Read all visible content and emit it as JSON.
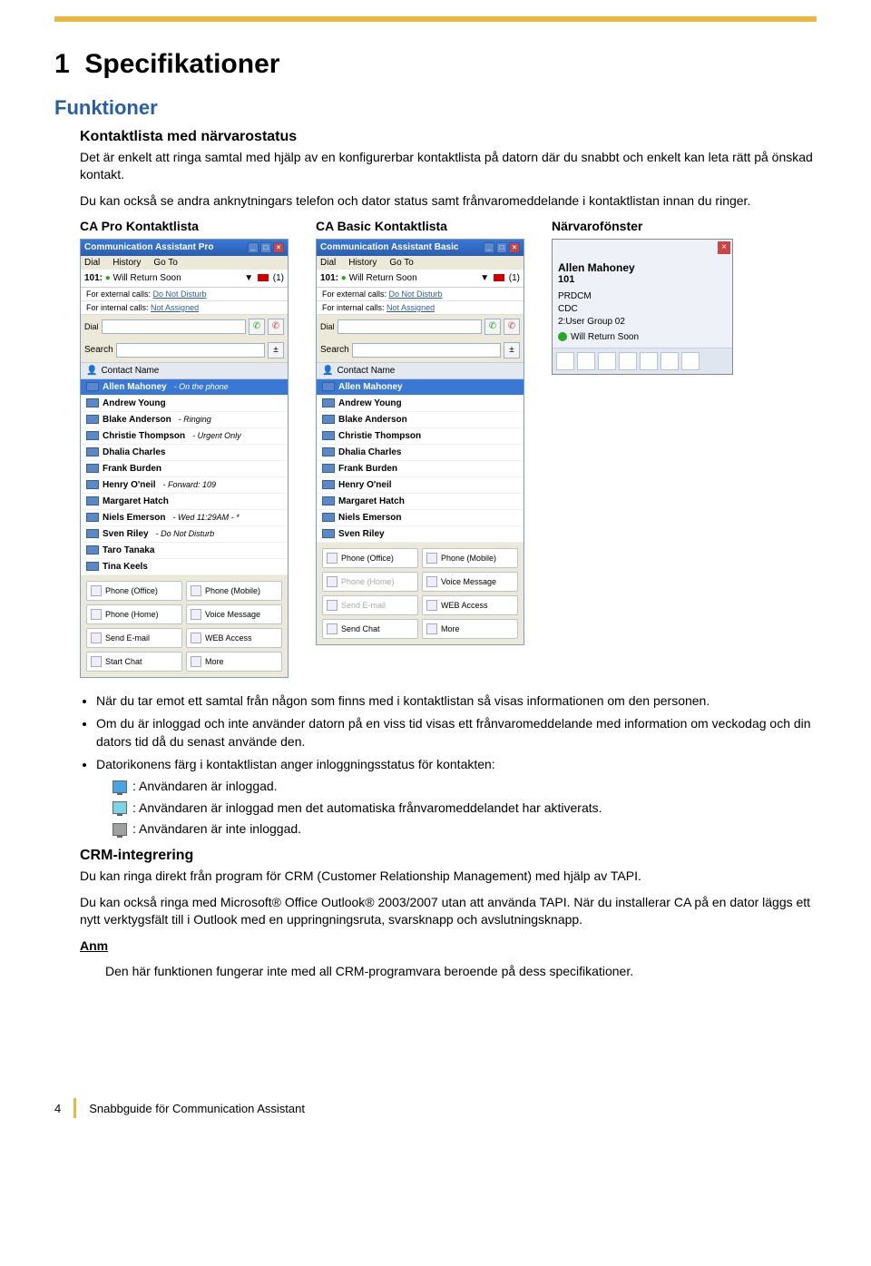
{
  "page": {
    "section_number": "1",
    "section_title": "Specifikationer",
    "h2": "Funktioner",
    "h3_contactlist": "Kontaktlista med närvarostatus",
    "intro_p1": "Det är enkelt att ringa samtal med hjälp av en konfigurerbar kontaktlista på datorn där du snabbt och enkelt kan leta rätt på önskad kontakt.",
    "intro_p2": "Du kan också se andra anknytningars telefon och dator status samt frånvaromeddelande i kontaktlistan innan du ringer.",
    "col_labels": {
      "pro": "CA Pro Kontaktlista",
      "basic": "CA Basic Kontaktlista",
      "presence": "Närvarofönster"
    },
    "bullets": [
      "När du tar emot ett samtal från någon som finns med i kontaktlistan så visas informationen om den personen.",
      "Om du är inloggad och inte använder datorn på en viss tid visas ett frånvaromeddelande med information om veckodag och din dators tid då du senast använde den.",
      "Datorikonens färg i kontaktlistan anger inloggningsstatus för kontakten:"
    ],
    "icon_lines": [
      {
        "color": "blue",
        "text": ": Användaren är inloggad."
      },
      {
        "color": "cyan",
        "text": ": Användaren är inloggad men det automatiska frånvaromeddelandet har aktiverats."
      },
      {
        "color": "gray",
        "text": ": Användaren är inte inloggad."
      }
    ],
    "h3_crm": "CRM-integrering",
    "crm_p1": "Du kan ringa direkt från program för CRM (Customer Relationship Management) med hjälp av TAPI.",
    "crm_p2": "Du kan också ringa med Microsoft® Office Outlook® 2003/2007 utan att använda TAPI. När du installerar CA på en dator läggs ett nytt verktygsfält till i Outlook med en uppringningsruta, svarsknapp och avslutningsknapp.",
    "anm_label": "Anm",
    "anm_text": "Den här funktionen fungerar inte med all CRM-programvara beroende på dess specifikationer.",
    "footer_page": "4",
    "footer_title": "Snabbguide för Communication Assistant"
  },
  "colors": {
    "accent_gold": "#e8b840",
    "heading_blue": "#2a5da8",
    "titlebar_blue": "#3a78d6"
  },
  "app_common": {
    "menu": {
      "dial": "Dial",
      "history": "History",
      "goto": "Go To"
    },
    "ext_label": "101:",
    "status_text": "Will Return Soon",
    "badge_text": "(1)",
    "external_label": "For external calls:",
    "external_value": "Do Not Disturb",
    "internal_label": "For internal calls:",
    "internal_value": "Not Assigned",
    "dial_label": "Dial",
    "search_label": "Search",
    "list_header": "Contact Name"
  },
  "pro": {
    "title": "Communication Assistant Pro",
    "contacts": [
      {
        "name": "Allen Mahoney",
        "status": "- On the phone",
        "selected": true
      },
      {
        "name": "Andrew Young",
        "status": ""
      },
      {
        "name": "Blake Anderson",
        "status": "- Ringing"
      },
      {
        "name": "Christie Thompson",
        "status": "- Urgent Only"
      },
      {
        "name": "Dhalia Charles",
        "status": ""
      },
      {
        "name": "Frank Burden",
        "status": ""
      },
      {
        "name": "Henry O'neil",
        "status": "- Forward: 109"
      },
      {
        "name": "Margaret Hatch",
        "status": ""
      },
      {
        "name": "Niels Emerson",
        "status": "- Wed 11:29AM - *"
      },
      {
        "name": "Sven Riley",
        "status": "- Do Not Disturb"
      },
      {
        "name": "Taro Tanaka",
        "status": ""
      },
      {
        "name": "Tina Keels",
        "status": ""
      }
    ],
    "actions": [
      {
        "label": "Phone (Office)"
      },
      {
        "label": "Phone (Mobile)"
      },
      {
        "label": "Phone (Home)"
      },
      {
        "label": "Voice Message"
      },
      {
        "label": "Send E-mail"
      },
      {
        "label": "WEB Access"
      },
      {
        "label": "Start Chat"
      },
      {
        "label": "More"
      }
    ]
  },
  "basic": {
    "title": "Communication Assistant Basic",
    "contacts": [
      {
        "name": "Allen Mahoney",
        "status": "",
        "selected": true
      },
      {
        "name": "Andrew Young",
        "status": ""
      },
      {
        "name": "Blake Anderson",
        "status": ""
      },
      {
        "name": "Christie Thompson",
        "status": ""
      },
      {
        "name": "Dhalia Charles",
        "status": ""
      },
      {
        "name": "Frank Burden",
        "status": ""
      },
      {
        "name": "Henry O'neil",
        "status": ""
      },
      {
        "name": "Margaret Hatch",
        "status": ""
      },
      {
        "name": "Niels Emerson",
        "status": ""
      },
      {
        "name": "Sven Riley",
        "status": ""
      }
    ],
    "actions": [
      {
        "label": "Phone (Office)"
      },
      {
        "label": "Phone (Mobile)"
      },
      {
        "label": "Phone (Home)",
        "disabled": true
      },
      {
        "label": "Voice Message"
      },
      {
        "label": "Send E-mail",
        "disabled": true
      },
      {
        "label": "WEB Access"
      },
      {
        "label": "Send Chat"
      },
      {
        "label": "More"
      }
    ]
  },
  "presence_popup": {
    "name": "Allen Mahoney",
    "ext": "101",
    "lines": [
      "PRDCM",
      "CDC",
      "2:User Group 02"
    ],
    "status": "Will Return Soon",
    "toolbar_count": 7
  }
}
